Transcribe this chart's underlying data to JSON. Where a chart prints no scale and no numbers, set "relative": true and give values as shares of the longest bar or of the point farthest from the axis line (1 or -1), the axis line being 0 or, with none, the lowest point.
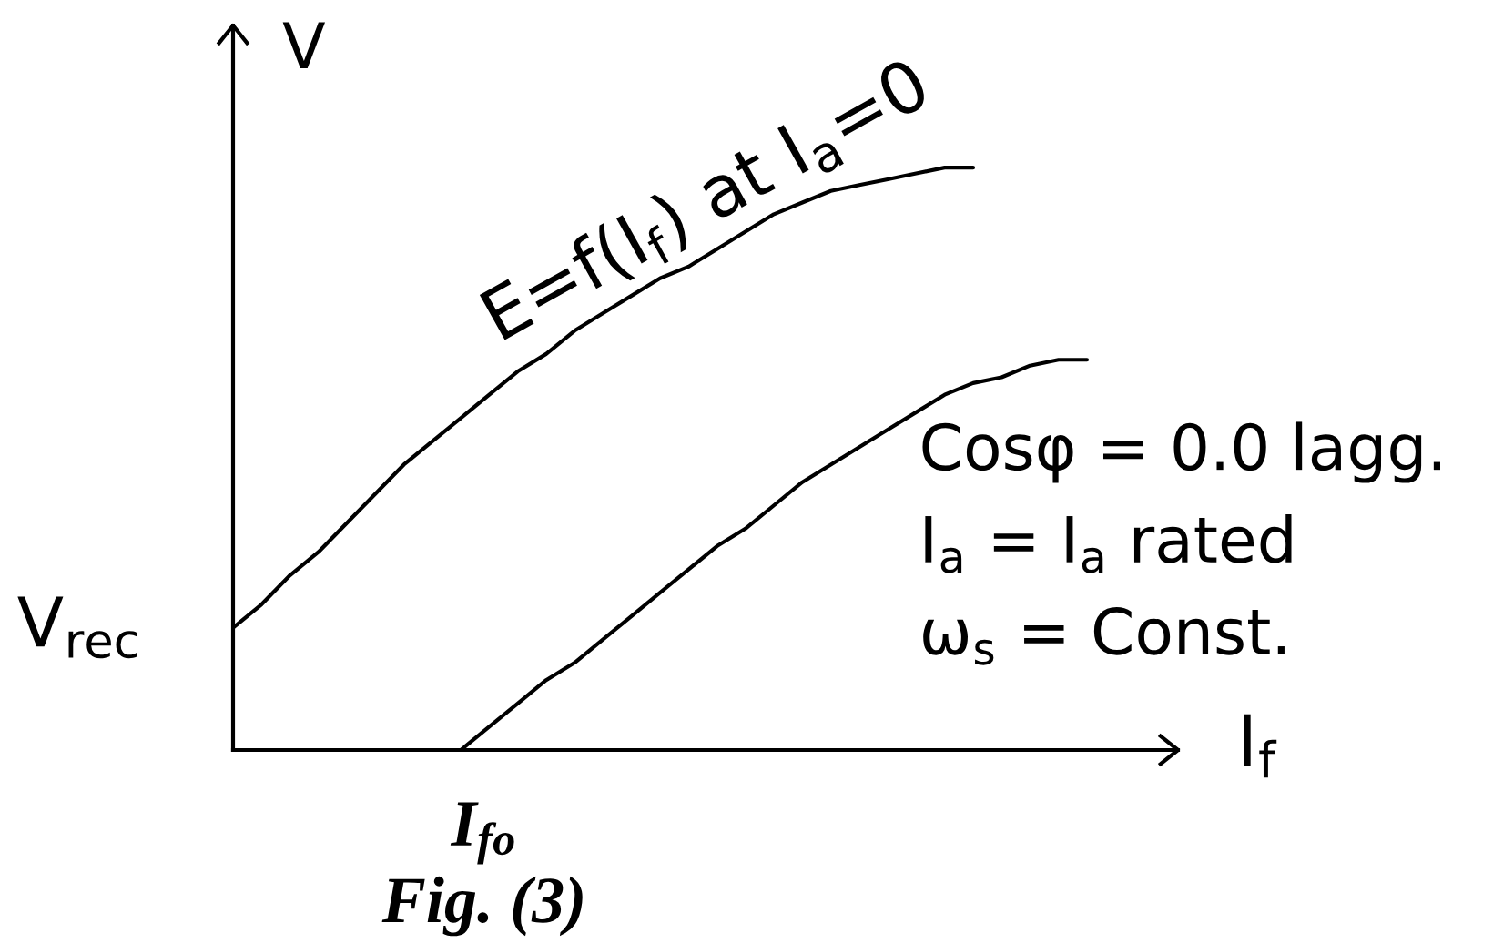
{
  "chart_data": {
    "type": "line",
    "relative": true,
    "xlabel": "I$_{f}$",
    "ylabel": "V",
    "categories": [
      null,
      null,
      null,
      null,
      null,
      null,
      null,
      null,
      null,
      null,
      null,
      null,
      null,
      null,
      null,
      null,
      null,
      null,
      null,
      null,
      null,
      null,
      null,
      null,
      null,
      null,
      null,
      null,
      null,
      null,
      null
    ],
    "series": [
      {
        "name": "E=f(I$_{f}$) at I$_{a}$=0",
        "color": "#000000",
        "values": [
          0.21,
          0.25,
          0.3,
          0.34,
          0.39,
          0.44,
          0.49,
          0.53,
          0.57,
          0.61,
          0.65,
          0.68,
          0.72,
          0.75,
          0.78,
          0.81,
          0.83,
          0.86,
          0.89,
          0.92,
          0.94,
          0.96,
          0.97,
          0.98,
          0.99,
          1,
          1,
          null,
          null,
          null,
          null
        ]
      },
      {
        "name": "Cosφ = 0.0 lagg.\nI$_{a}$ = I$_{a}$ rated\nω$_{s}$ = Const.",
        "color": "#000000",
        "values": [
          null,
          null,
          null,
          null,
          null,
          null,
          null,
          null,
          0,
          0.04,
          0.08,
          0.12,
          0.15,
          0.19,
          0.23,
          0.27,
          0.31,
          0.35,
          0.38,
          0.42,
          0.46,
          0.49,
          0.52,
          0.55,
          0.58,
          0.61,
          0.63,
          0.64,
          0.66,
          0.67,
          0.67
        ]
      }
    ],
    "annotations": [
      "V$_{rec}$",
      "I$_{fo}$",
      "Fig. (3)"
    ]
  }
}
